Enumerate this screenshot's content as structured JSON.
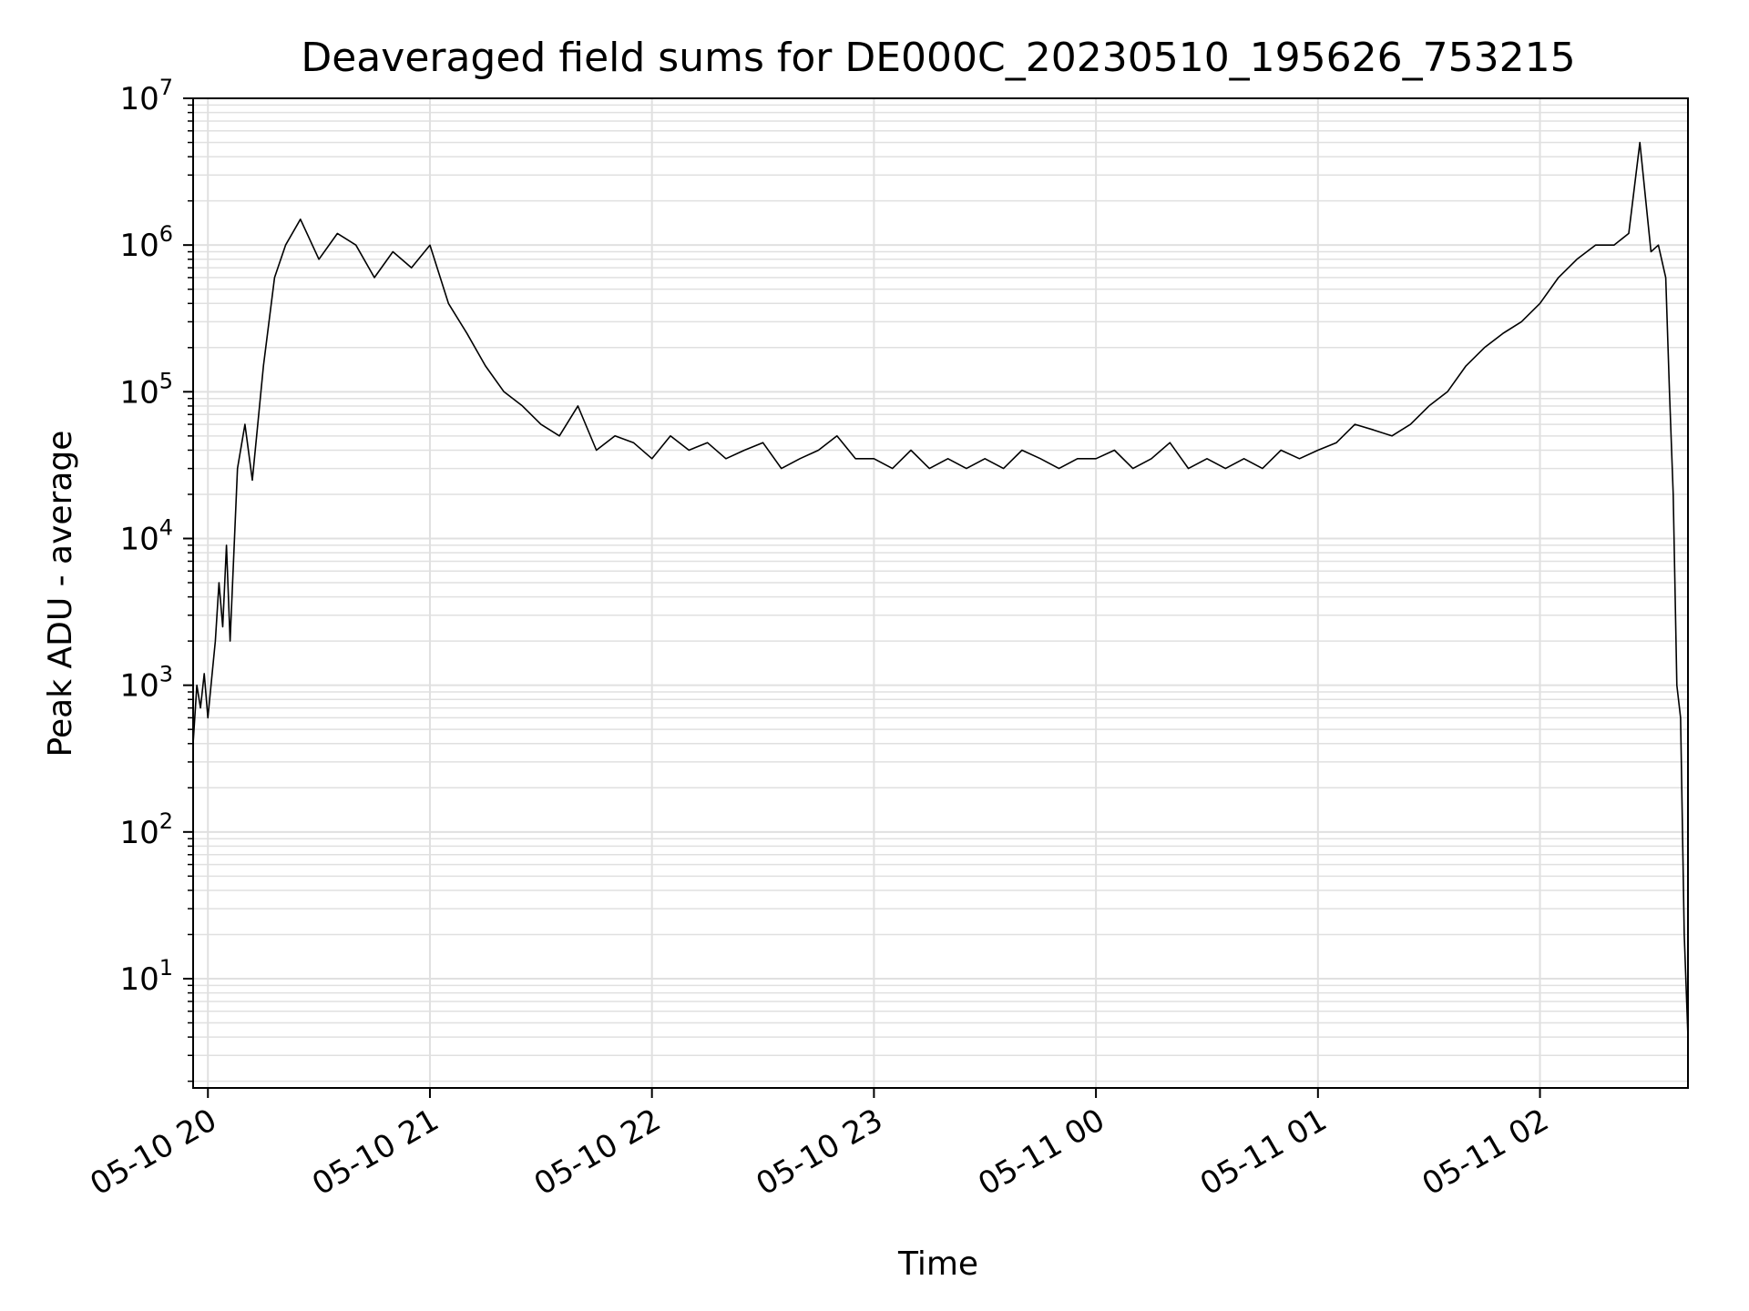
{
  "chart_data": {
    "type": "line",
    "title": "Deaveraged field sums for DE000C_20230510_195626_753215",
    "xlabel": "Time",
    "ylabel": "Peak ADU - average",
    "yscale": "log",
    "ylim": [
      1.8,
      10000000
    ],
    "xlim": [
      "2023-05-10 19:56",
      "2023-05-11 02:40"
    ],
    "grid": true,
    "line_color": "#000000",
    "grid_color": "#e0e0e0",
    "x_ticks": [
      {
        "t": "2023-05-10 20:00",
        "label": "05-10 20"
      },
      {
        "t": "2023-05-10 21:00",
        "label": "05-10 21"
      },
      {
        "t": "2023-05-10 22:00",
        "label": "05-10 22"
      },
      {
        "t": "2023-05-10 23:00",
        "label": "05-10 23"
      },
      {
        "t": "2023-05-11 00:00",
        "label": "05-11 00"
      },
      {
        "t": "2023-05-11 01:00",
        "label": "05-11 01"
      },
      {
        "t": "2023-05-11 02:00",
        "label": "05-11 02"
      }
    ],
    "y_ticks": [
      {
        "value": 10,
        "base": "10",
        "exp": "1"
      },
      {
        "value": 100,
        "base": "10",
        "exp": "2"
      },
      {
        "value": 1000,
        "base": "10",
        "exp": "3"
      },
      {
        "value": 10000,
        "base": "10",
        "exp": "4"
      },
      {
        "value": 100000,
        "base": "10",
        "exp": "5"
      },
      {
        "value": 1000000,
        "base": "10",
        "exp": "6"
      },
      {
        "value": 10000000,
        "base": "10",
        "exp": "7"
      }
    ],
    "series": [
      {
        "x": [
          "2023-05-10 19:56",
          "2023-05-10 19:57",
          "2023-05-10 19:58",
          "2023-05-10 19:59",
          "2023-05-10 20:00",
          "2023-05-10 20:01",
          "2023-05-10 20:02",
          "2023-05-10 20:03",
          "2023-05-10 20:04",
          "2023-05-10 20:05",
          "2023-05-10 20:06",
          "2023-05-10 20:08",
          "2023-05-10 20:10",
          "2023-05-10 20:12",
          "2023-05-10 20:15",
          "2023-05-10 20:18",
          "2023-05-10 20:21",
          "2023-05-10 20:25",
          "2023-05-10 20:30",
          "2023-05-10 20:35",
          "2023-05-10 20:40",
          "2023-05-10 20:45",
          "2023-05-10 20:50",
          "2023-05-10 20:55",
          "2023-05-10 21:00",
          "2023-05-10 21:05",
          "2023-05-10 21:10",
          "2023-05-10 21:15",
          "2023-05-10 21:20",
          "2023-05-10 21:25",
          "2023-05-10 21:30",
          "2023-05-10 21:35",
          "2023-05-10 21:40",
          "2023-05-10 21:45",
          "2023-05-10 21:50",
          "2023-05-10 21:55",
          "2023-05-10 22:00",
          "2023-05-10 22:05",
          "2023-05-10 22:10",
          "2023-05-10 22:15",
          "2023-05-10 22:20",
          "2023-05-10 22:25",
          "2023-05-10 22:30",
          "2023-05-10 22:35",
          "2023-05-10 22:40",
          "2023-05-10 22:45",
          "2023-05-10 22:50",
          "2023-05-10 22:55",
          "2023-05-10 23:00",
          "2023-05-10 23:05",
          "2023-05-10 23:10",
          "2023-05-10 23:15",
          "2023-05-10 23:20",
          "2023-05-10 23:25",
          "2023-05-10 23:30",
          "2023-05-10 23:35",
          "2023-05-10 23:40",
          "2023-05-10 23:45",
          "2023-05-10 23:50",
          "2023-05-10 23:55",
          "2023-05-11 00:00",
          "2023-05-11 00:05",
          "2023-05-11 00:10",
          "2023-05-11 00:15",
          "2023-05-11 00:20",
          "2023-05-11 00:25",
          "2023-05-11 00:30",
          "2023-05-11 00:35",
          "2023-05-11 00:40",
          "2023-05-11 00:45",
          "2023-05-11 00:50",
          "2023-05-11 00:55",
          "2023-05-11 01:00",
          "2023-05-11 01:05",
          "2023-05-11 01:10",
          "2023-05-11 01:15",
          "2023-05-11 01:20",
          "2023-05-11 01:25",
          "2023-05-11 01:30",
          "2023-05-11 01:35",
          "2023-05-11 01:40",
          "2023-05-11 01:45",
          "2023-05-11 01:50",
          "2023-05-11 01:55",
          "2023-05-11 02:00",
          "2023-05-11 02:05",
          "2023-05-11 02:10",
          "2023-05-11 02:15",
          "2023-05-11 02:20",
          "2023-05-11 02:24",
          "2023-05-11 02:27",
          "2023-05-11 02:30",
          "2023-05-11 02:32",
          "2023-05-11 02:34",
          "2023-05-11 02:35",
          "2023-05-11 02:36",
          "2023-05-11 02:37",
          "2023-05-11 02:38",
          "2023-05-11 02:39",
          "2023-05-11 02:40"
        ],
        "y": [
          400,
          1000,
          700,
          1200,
          600,
          1100,
          2000,
          5000,
          2500,
          9000,
          2000,
          30000,
          60000,
          25000,
          150000,
          600000,
          1000000,
          1500000,
          800000,
          1200000,
          1000000,
          600000,
          900000,
          700000,
          1000000,
          400000,
          250000,
          150000,
          100000,
          80000,
          60000,
          50000,
          80000,
          40000,
          50000,
          45000,
          35000,
          50000,
          40000,
          45000,
          35000,
          40000,
          45000,
          30000,
          35000,
          40000,
          50000,
          35000,
          35000,
          30000,
          40000,
          30000,
          35000,
          30000,
          35000,
          30000,
          40000,
          35000,
          30000,
          35000,
          35000,
          40000,
          30000,
          35000,
          45000,
          30000,
          35000,
          30000,
          35000,
          30000,
          40000,
          35000,
          40000,
          45000,
          60000,
          55000,
          50000,
          60000,
          80000,
          100000,
          150000,
          200000,
          250000,
          300000,
          400000,
          600000,
          800000,
          1000000,
          1000000,
          1200000,
          5000000,
          900000,
          1000000,
          600000,
          100000,
          20000,
          1000,
          600,
          20,
          4
        ]
      }
    ]
  }
}
